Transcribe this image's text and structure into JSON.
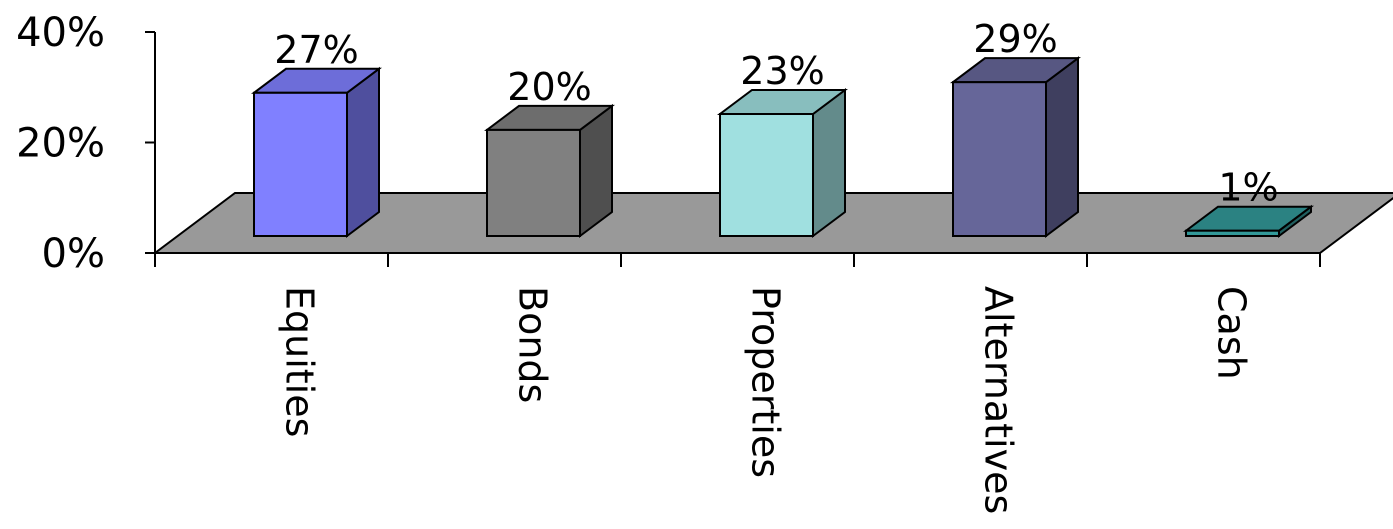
{
  "chart_data": {
    "type": "bar",
    "style": "3d-column",
    "categories": [
      "Equities",
      "Bonds",
      "Properties",
      "Alternatives",
      "Cash"
    ],
    "values": [
      27,
      20,
      23,
      29,
      1
    ],
    "value_labels": [
      "27%",
      "20%",
      "23%",
      "29%",
      "1%"
    ],
    "ylim": [
      0,
      40
    ],
    "yticks": [
      0,
      20,
      40
    ],
    "ytick_labels": [
      "0%",
      "20%",
      "40%"
    ],
    "xlabel": "",
    "ylabel": "",
    "title": "",
    "grid": false,
    "legend": "none",
    "colors": {
      "Equities": "#8080ff",
      "Bonds": "#808080",
      "Properties": "#a0e0e0",
      "Alternatives": "#666699",
      "Cash": "#339999"
    },
    "floor_color": "#999999"
  }
}
